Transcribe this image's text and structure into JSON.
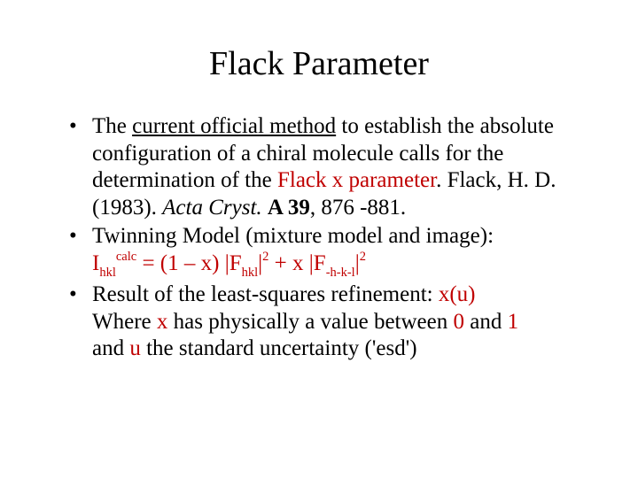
{
  "colors": {
    "text": "#000000",
    "background": "#ffffff",
    "accent_red": "#c00000"
  },
  "typography": {
    "family": "Times New Roman",
    "title_fontsize_pt": 38,
    "body_fontsize_pt": 25,
    "line_height": 1.22
  },
  "title": "Flack Parameter",
  "b1": {
    "t1": "The ",
    "t2": "current official method",
    "t3": " to establish  the absolute configuration of a chiral molecule  calls for the determination of the ",
    "t4": "Flack x parameter",
    "t5": ". Flack, H. D. (1983). ",
    "t6": "Acta Cryst.",
    "t7": " ",
    "t8": "A 39",
    "t9": ", 876 -881."
  },
  "b2": {
    "t1": "Twinning Model (mixture model and image):",
    "eq": {
      "I": "I",
      "Isub": "hkl",
      "Isup": "calc",
      "mid1": " = (1 – x) |F",
      "F1sub": "hkl",
      "F1bar": "|",
      "F1exp": "2",
      "plus": " + x |F",
      "F2sub": "-h-k-l",
      "F2bar": "|",
      "F2exp": "2"
    }
  },
  "b3": {
    "t1": " Result of the least-squares refinement: ",
    "t2": "x(u)",
    "t3": " Where ",
    "t4": "x",
    "t5": " has physically a value between ",
    "t6": "0",
    "t7": " and ",
    "t8": "1",
    "t9": "  and ",
    "t10": "u",
    "t11": " the standard uncertainty ('esd')"
  }
}
